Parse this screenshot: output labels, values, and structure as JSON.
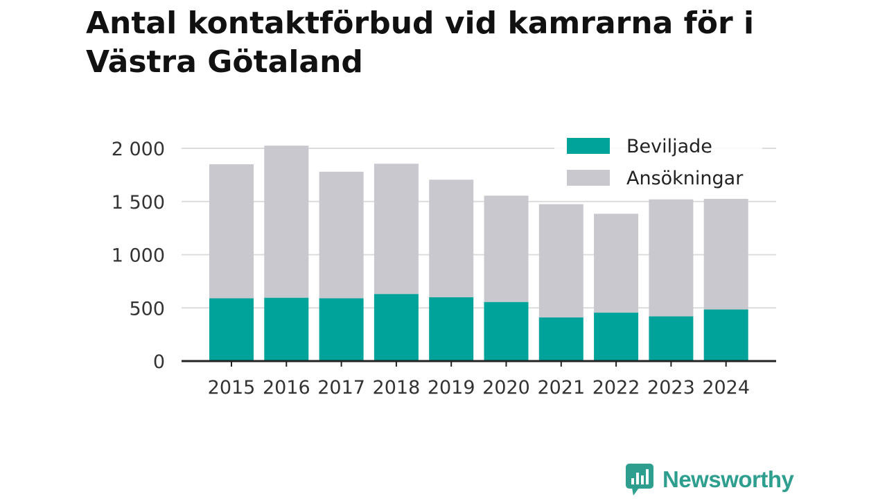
{
  "title": "Antal kontaktförbud vid kamrarna för i Västra Götaland",
  "colors": {
    "granted": "#00a39a",
    "applications": "#c9c8cf",
    "brand": "#2e9f8f",
    "grid": "#dcdcdc",
    "axis": "#222222"
  },
  "brand": {
    "name": "Newsworthy",
    "icon": "bar-chart-speech-bubble-icon"
  },
  "chart_data": {
    "type": "bar",
    "stacked": true,
    "title": "Antal kontaktförbud vid kamrarna för i Västra Götaland",
    "xlabel": "",
    "ylabel": "",
    "categories": [
      "2015",
      "2016",
      "2017",
      "2018",
      "2019",
      "2020",
      "2021",
      "2022",
      "2023",
      "2024"
    ],
    "series": [
      {
        "name": "Beviljade",
        "values": [
          590,
          595,
          590,
          630,
          600,
          555,
          410,
          455,
          420,
          485
        ]
      },
      {
        "name": "Ansökningar",
        "values": [
          1260,
          1430,
          1190,
          1225,
          1105,
          1000,
          1065,
          930,
          1100,
          1040
        ]
      }
    ],
    "totals": [
      1850,
      2025,
      1780,
      1855,
      1705,
      1555,
      1475,
      1385,
      1520,
      1525
    ],
    "ylim": [
      0,
      2000
    ],
    "yticks": [
      0,
      500,
      1000,
      1500,
      2000
    ],
    "ytick_labels": [
      "0",
      "500",
      "1 000",
      "1 500",
      "2 000"
    ],
    "grid": true,
    "legend_position": "top-right"
  }
}
